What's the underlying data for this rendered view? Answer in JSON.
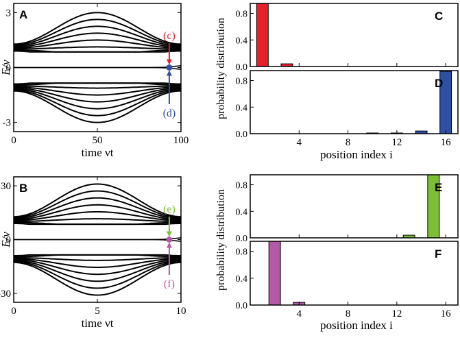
{
  "colors": {
    "red": "#e8202a",
    "blue": "#2f4fa2",
    "green": "#7cbf35",
    "magenta": "#b459a7",
    "frame": "#000000"
  },
  "chart_data": [
    {
      "id": "A",
      "type": "line",
      "label": "A",
      "xlabel": "time νt",
      "ylabel": "E/ν",
      "xlim": [
        0,
        100
      ],
      "ylim": [
        -3.5,
        3.5
      ],
      "xticks": [
        0,
        50,
        100
      ],
      "xtick_labels": [
        "0",
        "50",
        "100"
      ],
      "yticks": [
        3,
        0,
        -3
      ],
      "ytick_labels": [
        "3",
        "0",
        "-3"
      ],
      "band_curves": 8,
      "band_edge_start": 0.9,
      "band_peak": 3.0,
      "band_peak_time": 50,
      "zero_mode": {
        "energy": 0,
        "end_split": 0.1
      },
      "annotations": [
        {
          "label": "(c)",
          "color_key": "red",
          "side": "upper",
          "x": 93
        },
        {
          "label": "(d)",
          "color_key": "blue",
          "side": "lower",
          "x": 93
        }
      ]
    },
    {
      "id": "B",
      "type": "line",
      "label": "B",
      "xlabel": "time νt",
      "ylabel": "E/ν",
      "xlim": [
        0,
        10
      ],
      "ylim": [
        -35,
        35
      ],
      "xticks": [
        0,
        5,
        10
      ],
      "xtick_labels": [
        "0",
        "5",
        "10"
      ],
      "yticks": [
        30,
        0,
        -30
      ],
      "ytick_labels": [
        "30",
        "0",
        "-30"
      ],
      "band_curves": 8,
      "band_edge_start": 9,
      "band_peak": 31,
      "band_peak_time": 4.7,
      "zero_mode": {
        "energy": 0,
        "end_split": 1
      },
      "annotations": [
        {
          "label": "(e)",
          "color_key": "green",
          "side": "upper",
          "x": 9.3
        },
        {
          "label": "(f)",
          "color_key": "magenta",
          "side": "lower",
          "x": 9.3
        }
      ]
    },
    {
      "id": "C",
      "type": "bar",
      "label": "C",
      "color_key": "red",
      "x": [
        1,
        3
      ],
      "values": [
        0.95,
        0.04
      ],
      "xlim": [
        0,
        17
      ],
      "ylim": [
        0,
        0.95
      ],
      "yticks": [
        0,
        0.4,
        0.8
      ],
      "ytick_labels": [
        "0.0",
        "0.4",
        "0.8"
      ],
      "xticks": [
        4,
        8,
        12,
        16
      ],
      "show_xtick_labels": false
    },
    {
      "id": "D",
      "type": "bar",
      "label": "D",
      "color_key": "blue",
      "x": [
        10,
        12,
        14,
        16
      ],
      "values": [
        0.01,
        0.01,
        0.04,
        0.94
      ],
      "xlim": [
        0,
        17
      ],
      "ylim": [
        0,
        0.95
      ],
      "yticks": [
        0,
        0.4,
        0.8
      ],
      "ytick_labels": [
        "0.0",
        "0.4",
        "0.8"
      ],
      "xticks": [
        4,
        8,
        12,
        16
      ],
      "xtick_labels": [
        "4",
        "8",
        "12",
        "16"
      ],
      "show_xtick_labels": true
    },
    {
      "id": "E",
      "type": "bar",
      "label": "E",
      "color_key": "green",
      "x": [
        13,
        15
      ],
      "values": [
        0.04,
        0.95
      ],
      "xlim": [
        0,
        17
      ],
      "ylim": [
        0,
        0.95
      ],
      "yticks": [
        0,
        0.4,
        0.8
      ],
      "ytick_labels": [
        "0.0",
        "0.4",
        "0.8"
      ],
      "xticks": [
        4,
        8,
        12,
        16
      ],
      "show_xtick_labels": false
    },
    {
      "id": "F",
      "type": "bar",
      "label": "F",
      "color_key": "magenta",
      "x": [
        2,
        4
      ],
      "values": [
        0.95,
        0.04
      ],
      "xlim": [
        0,
        17
      ],
      "ylim": [
        0,
        0.95
      ],
      "yticks": [
        0,
        0.4,
        0.8
      ],
      "ytick_labels": [
        "0.0",
        "0.4",
        "0.8"
      ],
      "xticks": [
        4,
        8,
        12,
        16
      ],
      "xtick_labels": [
        "4",
        "8",
        "12",
        "16"
      ],
      "show_xtick_labels": true
    }
  ],
  "shared_labels": {
    "bars_ylabel": "probability distribution",
    "bars_xlabel": "position index i"
  }
}
